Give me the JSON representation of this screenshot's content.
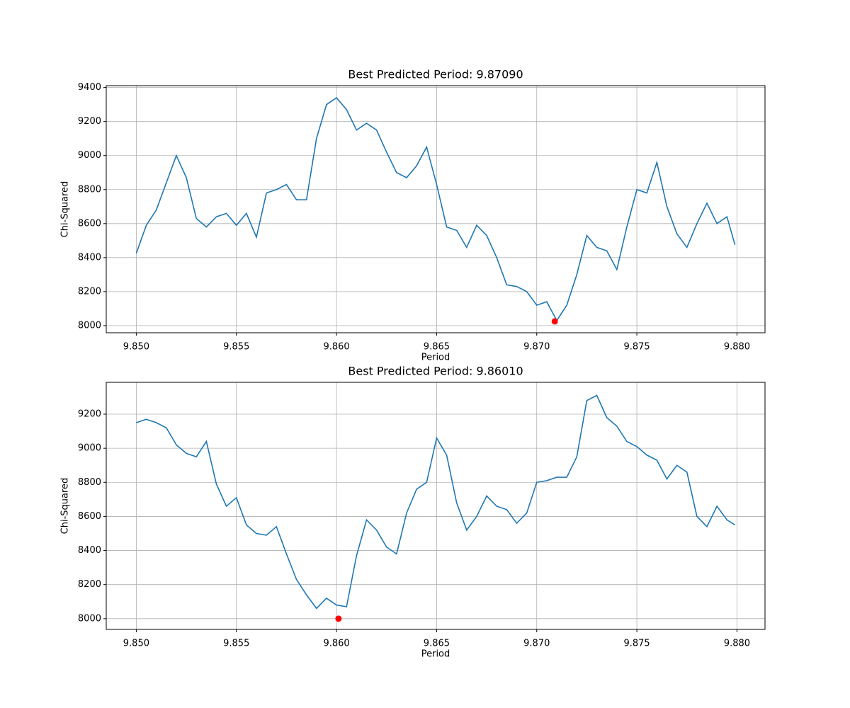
{
  "chart_data": [
    {
      "type": "line",
      "title": "Best Predicted Period: 9.87090",
      "xlabel": "Period",
      "ylabel": "Chi-Squared",
      "xlim": [
        9.8485,
        9.8814
      ],
      "ylim": [
        7958,
        9411
      ],
      "grid": true,
      "xticks": [
        {
          "value": 9.85,
          "label": "9.850"
        },
        {
          "value": 9.855,
          "label": "9.855"
        },
        {
          "value": 9.86,
          "label": "9.860"
        },
        {
          "value": 9.865,
          "label": "9.865"
        },
        {
          "value": 9.87,
          "label": "9.870"
        },
        {
          "value": 9.875,
          "label": "9.875"
        },
        {
          "value": 9.88,
          "label": "9.880"
        }
      ],
      "yticks": [
        8000,
        8200,
        8400,
        8600,
        8800,
        9000,
        9200,
        9400
      ],
      "series": [
        {
          "type": "line",
          "color": "#1f77b4",
          "x": [
            9.85,
            9.8505,
            9.851,
            9.8515,
            9.852,
            9.8525,
            9.853,
            9.8535,
            9.854,
            9.8545,
            9.855,
            9.8555,
            9.856,
            9.8565,
            9.857,
            9.8575,
            9.858,
            9.8585,
            9.859,
            9.8595,
            9.86,
            9.8605,
            9.861,
            9.8615,
            9.862,
            9.8625,
            9.863,
            9.8635,
            9.864,
            9.8645,
            9.865,
            9.8655,
            9.866,
            9.8665,
            9.867,
            9.8675,
            9.868,
            9.8685,
            9.869,
            9.8695,
            9.87,
            9.8705,
            9.871,
            9.8715,
            9.872,
            9.8725,
            9.873,
            9.8735,
            9.874,
            9.8745,
            9.875,
            9.8755,
            9.876,
            9.8765,
            9.877,
            9.8775,
            9.878,
            9.8785,
            9.879,
            9.8795,
            9.8799
          ],
          "values": [
            8425,
            8590,
            8680,
            8840,
            9000,
            8870,
            8630,
            8580,
            8640,
            8660,
            8590,
            8660,
            8520,
            8780,
            8800,
            8830,
            8740,
            8740,
            9100,
            9300,
            9340,
            9270,
            9150,
            9190,
            9150,
            9020,
            8900,
            8870,
            8940,
            9050,
            8830,
            8580,
            8560,
            8460,
            8590,
            8530,
            8400,
            8240,
            8230,
            8200,
            8120,
            8140,
            8030,
            8120,
            8300,
            8530,
            8460,
            8440,
            8330,
            8580,
            8800,
            8780,
            8960,
            8700,
            8540,
            8460,
            8600,
            8720,
            8600,
            8640,
            8475
          ]
        },
        {
          "type": "scatter",
          "color": "#ff0000",
          "x": [
            9.8709
          ],
          "values": [
            8025
          ]
        }
      ]
    },
    {
      "type": "line",
      "title": "Best Predicted Period: 9.86010",
      "xlabel": "Period",
      "ylabel": "Chi-Squared",
      "xlim": [
        9.8485,
        9.8814
      ],
      "ylim": [
        7937,
        9387
      ],
      "grid": true,
      "xticks": [
        {
          "value": 9.85,
          "label": "9.850"
        },
        {
          "value": 9.855,
          "label": "9.855"
        },
        {
          "value": 9.86,
          "label": "9.860"
        },
        {
          "value": 9.865,
          "label": "9.865"
        },
        {
          "value": 9.87,
          "label": "9.870"
        },
        {
          "value": 9.875,
          "label": "9.875"
        },
        {
          "value": 9.88,
          "label": "9.880"
        }
      ],
      "yticks": [
        8000,
        8200,
        8400,
        8600,
        8800,
        9000,
        9200
      ],
      "series": [
        {
          "type": "line",
          "color": "#1f77b4",
          "x": [
            9.85,
            9.8505,
            9.851,
            9.8515,
            9.852,
            9.8525,
            9.853,
            9.8535,
            9.854,
            9.8545,
            9.855,
            9.8555,
            9.856,
            9.8565,
            9.857,
            9.8575,
            9.858,
            9.8585,
            9.859,
            9.8595,
            9.86,
            9.8605,
            9.861,
            9.8615,
            9.862,
            9.8625,
            9.863,
            9.8635,
            9.864,
            9.8645,
            9.865,
            9.8655,
            9.866,
            9.8665,
            9.867,
            9.8675,
            9.868,
            9.8685,
            9.869,
            9.8695,
            9.87,
            9.8705,
            9.871,
            9.8715,
            9.872,
            9.8725,
            9.873,
            9.8735,
            9.874,
            9.8745,
            9.875,
            9.8755,
            9.876,
            9.8765,
            9.877,
            9.8775,
            9.878,
            9.8785,
            9.879,
            9.8795,
            9.8799
          ],
          "values": [
            9150,
            9170,
            9150,
            9120,
            9020,
            8970,
            8950,
            9040,
            8790,
            8660,
            8710,
            8550,
            8500,
            8490,
            8540,
            8380,
            8230,
            8140,
            8060,
            8120,
            8080,
            8070,
            8370,
            8580,
            8520,
            8420,
            8380,
            8620,
            8760,
            8800,
            9060,
            8960,
            8680,
            8520,
            8600,
            8720,
            8660,
            8640,
            8560,
            8620,
            8800,
            8810,
            8830,
            8830,
            8950,
            9280,
            9310,
            9180,
            9130,
            9040,
            9010,
            8960,
            8930,
            8820,
            8900,
            8860,
            8600,
            8540,
            8660,
            8580,
            8550
          ]
        },
        {
          "type": "scatter",
          "color": "#ff0000",
          "x": [
            9.8601
          ],
          "values": [
            8000
          ]
        }
      ]
    }
  ]
}
